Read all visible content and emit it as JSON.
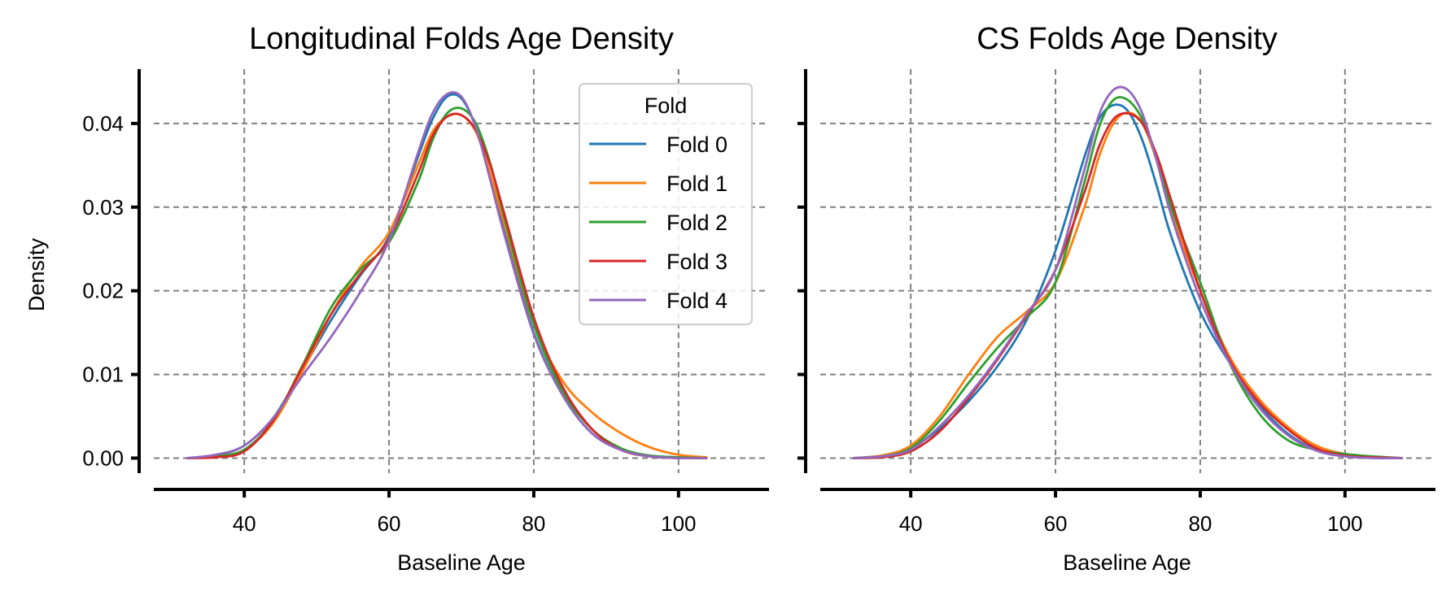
{
  "chart_data": [
    {
      "type": "line",
      "title": "Longitudinal Folds Age Density",
      "xlabel": "Baseline Age",
      "ylabel": "Density",
      "xlim": [
        27.5,
        112.5
      ],
      "ylim": [
        -0.0018,
        0.0465
      ],
      "xticks": [
        40,
        60,
        80,
        100
      ],
      "yticks": [
        0.0,
        0.01,
        0.02,
        0.03,
        0.04
      ],
      "ytick_labels": [
        "0.00",
        "0.01",
        "0.02",
        "0.03",
        "0.04"
      ],
      "grid": true,
      "legend": {
        "title": "Fold",
        "position": "top-right"
      },
      "series": [
        {
          "name": "Fold 0",
          "color": "#1f77b4",
          "x": [
            32,
            36,
            40,
            44,
            48,
            52,
            56,
            60,
            64,
            66,
            68,
            70,
            72,
            74,
            76,
            80,
            84,
            88,
            92,
            96,
            100,
            104
          ],
          "y": [
            0.0,
            0.0003,
            0.0015,
            0.0048,
            0.0105,
            0.0165,
            0.0218,
            0.0265,
            0.036,
            0.0405,
            0.0432,
            0.043,
            0.0395,
            0.0335,
            0.027,
            0.015,
            0.0075,
            0.003,
            0.001,
            0.0003,
            0.0001,
            0.0
          ]
        },
        {
          "name": "Fold 1",
          "color": "#ff7f0e",
          "x": [
            32,
            36,
            40,
            44,
            48,
            52,
            56,
            60,
            64,
            66,
            68,
            70,
            72,
            74,
            76,
            80,
            84,
            88,
            92,
            96,
            100,
            104
          ],
          "y": [
            0.0,
            0.0002,
            0.001,
            0.0042,
            0.0103,
            0.0172,
            0.0228,
            0.027,
            0.035,
            0.039,
            0.0408,
            0.041,
            0.039,
            0.034,
            0.0278,
            0.016,
            0.0092,
            0.0055,
            0.003,
            0.0013,
            0.0004,
            0.0001
          ]
        },
        {
          "name": "Fold 2",
          "color": "#2ca02c",
          "x": [
            32,
            36,
            40,
            44,
            48,
            52,
            56,
            60,
            64,
            66,
            68,
            70,
            72,
            74,
            76,
            80,
            84,
            88,
            92,
            96,
            100,
            104
          ],
          "y": [
            0.0,
            0.0002,
            0.001,
            0.0045,
            0.011,
            0.018,
            0.0225,
            0.0258,
            0.033,
            0.038,
            0.0412,
            0.0418,
            0.04,
            0.0352,
            0.0285,
            0.016,
            0.008,
            0.0035,
            0.0012,
            0.0003,
            0.0001,
            0.0
          ]
        },
        {
          "name": "Fold 3",
          "color": "#d62728",
          "x": [
            32,
            36,
            40,
            44,
            48,
            52,
            56,
            60,
            64,
            66,
            68,
            70,
            72,
            74,
            76,
            80,
            84,
            88,
            92,
            96,
            100,
            104
          ],
          "y": [
            0.0,
            0.0001,
            0.0008,
            0.0045,
            0.0108,
            0.0172,
            0.022,
            0.0262,
            0.034,
            0.0385,
            0.0408,
            0.041,
            0.0392,
            0.035,
            0.029,
            0.0168,
            0.0085,
            0.0035,
            0.001,
            0.0002,
            0.0,
            0.0
          ]
        },
        {
          "name": "Fold 4",
          "color": "#9467bd",
          "x": [
            32,
            36,
            40,
            44,
            48,
            52,
            56,
            60,
            64,
            66,
            68,
            70,
            72,
            74,
            76,
            80,
            84,
            88,
            92,
            96,
            100,
            104
          ],
          "y": [
            0.0,
            0.0004,
            0.0015,
            0.0048,
            0.0098,
            0.0145,
            0.0198,
            0.026,
            0.0365,
            0.0412,
            0.0435,
            0.0432,
            0.0395,
            0.0332,
            0.0265,
            0.0148,
            0.0075,
            0.003,
            0.001,
            0.0002,
            0.0,
            0.0
          ]
        }
      ]
    },
    {
      "type": "line",
      "title": "CS Folds Age Density",
      "xlabel": "Baseline Age",
      "ylabel": "",
      "xlim": [
        27.5,
        112.5
      ],
      "ylim": [
        -0.0018,
        0.0465
      ],
      "xticks": [
        40,
        60,
        80,
        100
      ],
      "yticks": [
        0.0,
        0.01,
        0.02,
        0.03,
        0.04
      ],
      "grid": true,
      "series": [
        {
          "name": "Fold 0",
          "color": "#1f77b4",
          "x": [
            32,
            36,
            40,
            44,
            48,
            52,
            56,
            60,
            64,
            66,
            68,
            70,
            72,
            74,
            76,
            80,
            84,
            88,
            92,
            96,
            100,
            104,
            108
          ],
          "y": [
            0.0,
            0.0003,
            0.0012,
            0.0035,
            0.0068,
            0.011,
            0.0165,
            0.0248,
            0.036,
            0.0405,
            0.0422,
            0.0415,
            0.038,
            0.0325,
            0.0265,
            0.0175,
            0.0115,
            0.0065,
            0.003,
            0.001,
            0.0003,
            0.0001,
            0.0
          ]
        },
        {
          "name": "Fold 1",
          "color": "#ff7f0e",
          "x": [
            32,
            36,
            40,
            44,
            48,
            52,
            56,
            60,
            64,
            66,
            68,
            70,
            72,
            74,
            76,
            80,
            84,
            88,
            92,
            96,
            100,
            104,
            108
          ],
          "y": [
            0.0,
            0.0003,
            0.0015,
            0.005,
            0.01,
            0.0145,
            0.0175,
            0.021,
            0.03,
            0.036,
            0.04,
            0.0413,
            0.04,
            0.0355,
            0.0295,
            0.02,
            0.0122,
            0.0072,
            0.0038,
            0.0015,
            0.0005,
            0.0001,
            0.0
          ]
        },
        {
          "name": "Fold 2",
          "color": "#2ca02c",
          "x": [
            32,
            36,
            40,
            44,
            48,
            52,
            56,
            60,
            64,
            66,
            68,
            70,
            72,
            74,
            76,
            80,
            84,
            88,
            92,
            96,
            100,
            104,
            108
          ],
          "y": [
            0.0,
            0.0002,
            0.0012,
            0.0045,
            0.009,
            0.0132,
            0.0168,
            0.021,
            0.033,
            0.0395,
            0.0428,
            0.0428,
            0.0405,
            0.036,
            0.03,
            0.021,
            0.0115,
            0.0055,
            0.0022,
            0.001,
            0.0005,
            0.0002,
            0.0
          ]
        },
        {
          "name": "Fold 3",
          "color": "#d62728",
          "x": [
            32,
            36,
            40,
            44,
            48,
            52,
            56,
            60,
            64,
            66,
            68,
            70,
            72,
            74,
            76,
            80,
            84,
            88,
            92,
            96,
            100,
            104,
            108
          ],
          "y": [
            0.0,
            0.0001,
            0.0008,
            0.0032,
            0.0072,
            0.0118,
            0.017,
            0.0225,
            0.0318,
            0.0372,
            0.0405,
            0.0412,
            0.04,
            0.0362,
            0.0308,
            0.02,
            0.0118,
            0.0068,
            0.0035,
            0.0012,
            0.0003,
            0.0001,
            0.0
          ]
        },
        {
          "name": "Fold 4",
          "color": "#9467bd",
          "x": [
            32,
            36,
            40,
            44,
            48,
            52,
            56,
            60,
            64,
            66,
            68,
            70,
            72,
            74,
            76,
            80,
            84,
            88,
            92,
            96,
            100,
            104,
            108
          ],
          "y": [
            0.0,
            0.0002,
            0.001,
            0.0038,
            0.0075,
            0.012,
            0.0172,
            0.0225,
            0.0345,
            0.041,
            0.044,
            0.044,
            0.0412,
            0.0355,
            0.029,
            0.019,
            0.0115,
            0.0062,
            0.0028,
            0.0009,
            0.0002,
            0.0,
            0.0
          ]
        }
      ]
    }
  ]
}
